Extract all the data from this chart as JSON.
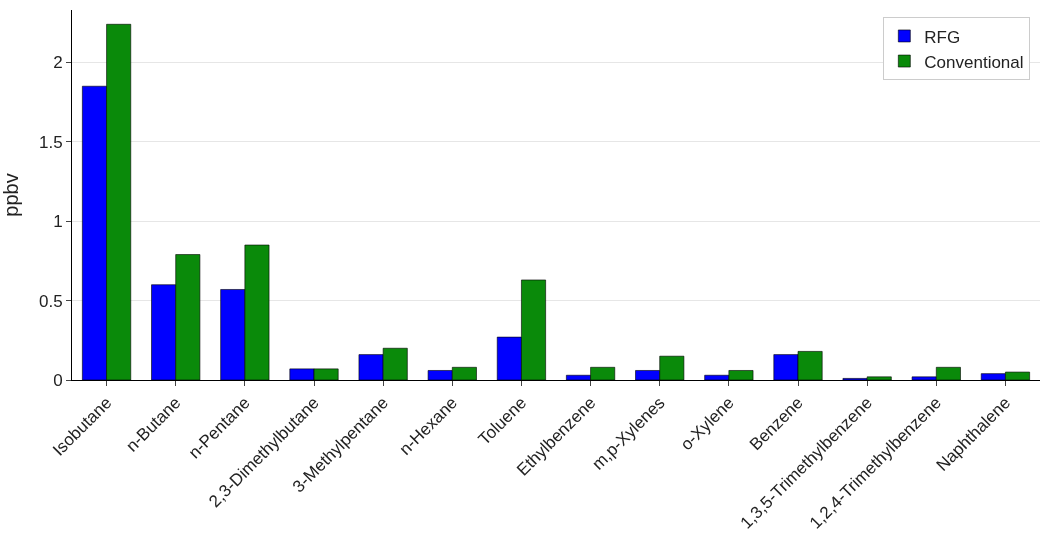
{
  "chart_data": {
    "type": "bar",
    "ylabel": "ppbv",
    "categories": [
      "Isobutane",
      "n-Butane",
      "n-Pentane",
      "2,3-Dimethylbutane",
      "3-Methylpentane",
      "n-Hexane",
      "Toluene",
      "Ethylbenzene",
      "m,p-Xylenes",
      "o-Xylene",
      "Benzene",
      "1,3,5-Trimethylbenzene",
      "1,2,4-Trimethylbenzene",
      "Naphthalene"
    ],
    "series": [
      {
        "name": "RFG",
        "color": "#0000ff",
        "values": [
          1.85,
          0.6,
          0.57,
          0.07,
          0.16,
          0.06,
          0.27,
          0.03,
          0.06,
          0.03,
          0.16,
          0.01,
          0.02,
          0.04
        ]
      },
      {
        "name": "Conventional",
        "color": "#0a8a0a",
        "values": [
          2.24,
          0.79,
          0.85,
          0.07,
          0.2,
          0.08,
          0.63,
          0.08,
          0.15,
          0.06,
          0.18,
          0.02,
          0.08,
          0.05
        ]
      }
    ],
    "ylim": [
      0,
      2.33
    ],
    "yticks": [
      0,
      0.5,
      1,
      1.5,
      2
    ],
    "grid": "y",
    "legend": "top right"
  }
}
